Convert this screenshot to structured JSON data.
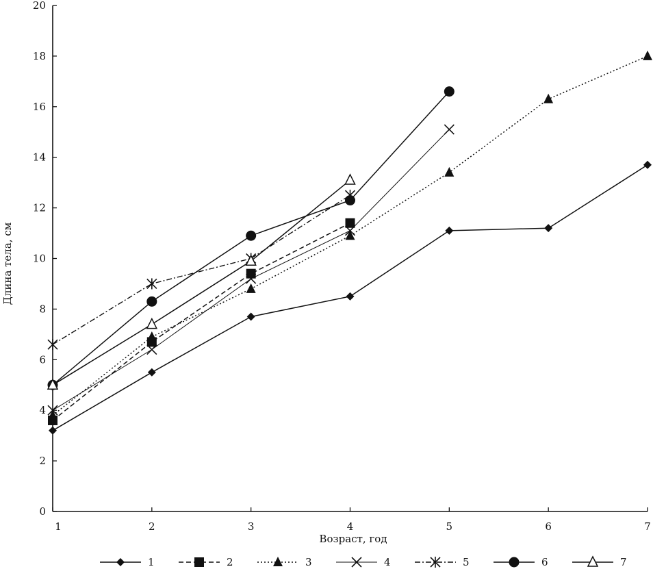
{
  "chart_data": {
    "type": "line",
    "xlabel": "Возраст, год",
    "ylabel": "Длина тела, см",
    "xlim": [
      1,
      7
    ],
    "ylim": [
      0,
      20
    ],
    "x_ticks": [
      1,
      2,
      3,
      4,
      5,
      6,
      7
    ],
    "y_ticks": [
      0,
      2,
      4,
      6,
      8,
      10,
      12,
      14,
      16,
      18,
      20
    ],
    "grid": false,
    "legend_position": "bottom",
    "series": [
      {
        "name": "1",
        "marker": "diamond-filled",
        "dash": "solid",
        "x": [
          1,
          2,
          3,
          4,
          5,
          6,
          7
        ],
        "y": [
          3.2,
          5.5,
          7.7,
          8.5,
          11.1,
          11.2,
          13.7
        ]
      },
      {
        "name": "2",
        "marker": "square-filled",
        "dash": "dashed",
        "x": [
          1,
          2,
          3,
          4
        ],
        "y": [
          3.6,
          6.7,
          9.4,
          11.4
        ]
      },
      {
        "name": "3",
        "marker": "triangle-filled",
        "dash": "dotted",
        "x": [
          1,
          2,
          3,
          4,
          5,
          6,
          7
        ],
        "y": [
          3.8,
          6.9,
          8.8,
          10.9,
          13.4,
          16.3,
          18.0
        ]
      },
      {
        "name": "4",
        "marker": "x",
        "dash": "solid-thin",
        "x": [
          1,
          2,
          3,
          4,
          5
        ],
        "y": [
          4.0,
          6.4,
          9.2,
          11.1,
          15.1
        ]
      },
      {
        "name": "5",
        "marker": "asterisk",
        "dash": "dash-dot",
        "x": [
          1,
          2,
          3,
          4
        ],
        "y": [
          6.6,
          9.0,
          10.0,
          12.5
        ]
      },
      {
        "name": "6",
        "marker": "circle-filled",
        "dash": "solid",
        "x": [
          1,
          2,
          3,
          4,
          5
        ],
        "y": [
          5.0,
          8.3,
          10.9,
          12.3,
          16.6
        ]
      },
      {
        "name": "7",
        "marker": "triangle-open",
        "dash": "solid",
        "x": [
          1,
          2,
          3,
          4
        ],
        "y": [
          5.0,
          7.4,
          9.9,
          13.1
        ]
      }
    ]
  }
}
